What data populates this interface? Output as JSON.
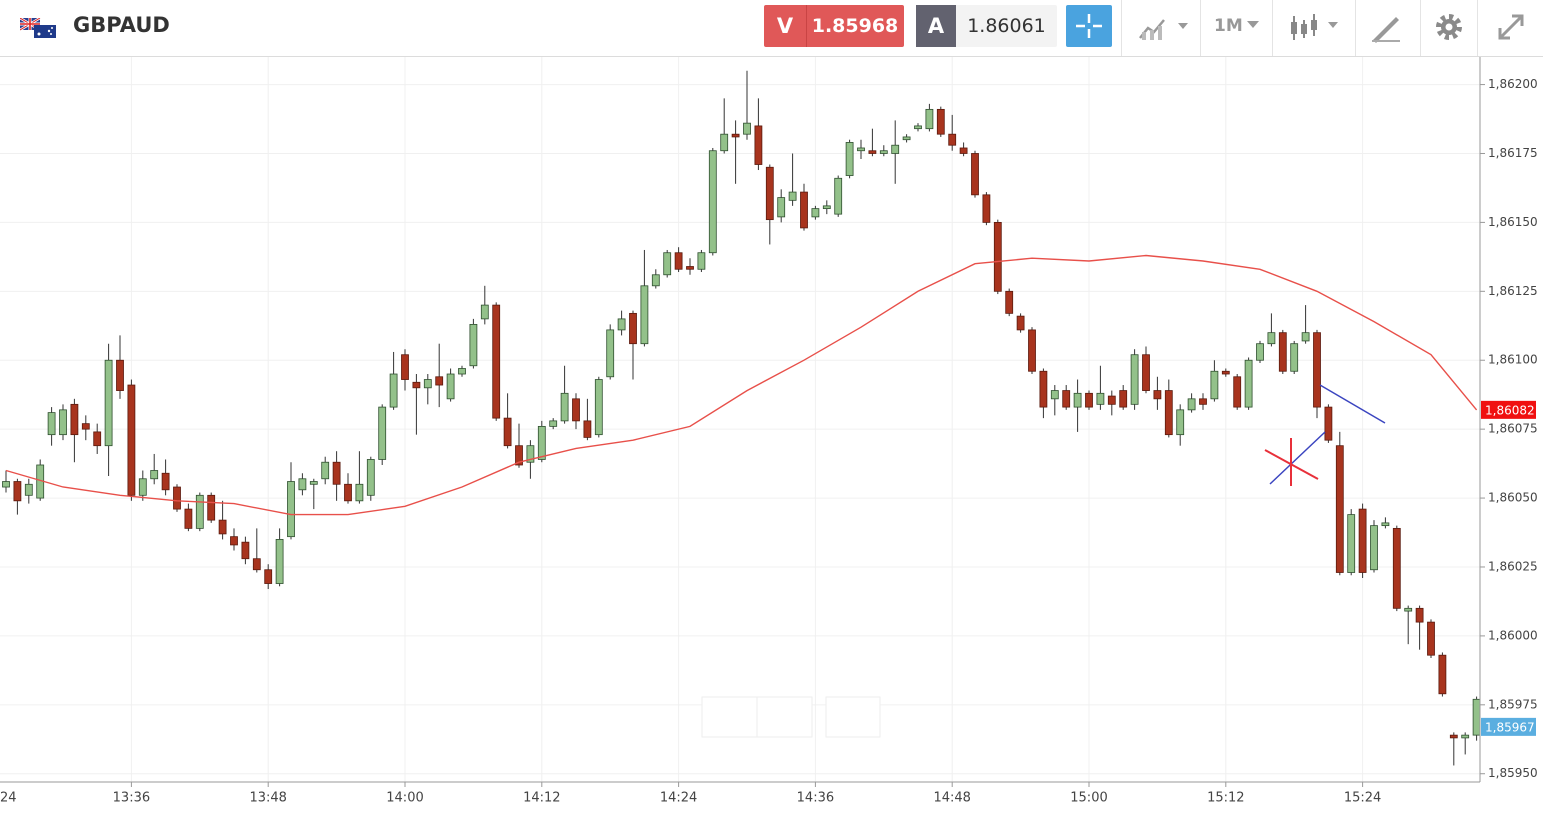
{
  "header": {
    "symbol": "GBPAUD",
    "sell": {
      "label": "V",
      "price": "1.85968"
    },
    "buy": {
      "label": "A",
      "price": "1.86061"
    },
    "timeframe": "1M"
  },
  "chart_data": {
    "type": "candlestick",
    "x": [
      "13:25",
      "13:26",
      "13:27",
      "13:28",
      "13:29",
      "13:30",
      "13:31",
      "13:32",
      "13:33",
      "13:34",
      "13:35",
      "13:36",
      "13:37",
      "13:38",
      "13:39",
      "13:40",
      "13:41",
      "13:42",
      "13:43",
      "13:44",
      "13:45",
      "13:46",
      "13:47",
      "13:48",
      "13:49",
      "13:50",
      "13:51",
      "13:52",
      "13:53",
      "13:54",
      "13:55",
      "13:56",
      "13:57",
      "13:58",
      "13:59",
      "14:00",
      "14:01",
      "14:02",
      "14:03",
      "14:04",
      "14:05",
      "14:06",
      "14:07",
      "14:08",
      "14:09",
      "14:10",
      "14:11",
      "14:12",
      "14:13",
      "14:14",
      "14:15",
      "14:16",
      "14:17",
      "14:18",
      "14:19",
      "14:20",
      "14:21",
      "14:22",
      "14:23",
      "14:24",
      "14:25",
      "14:26",
      "14:27",
      "14:28",
      "14:29",
      "14:30",
      "14:31",
      "14:32",
      "14:33",
      "14:34",
      "14:35",
      "14:36",
      "14:37",
      "14:38",
      "14:39",
      "14:40",
      "14:41",
      "14:42",
      "14:43",
      "14:44",
      "14:45",
      "14:46",
      "14:47",
      "14:48",
      "14:49",
      "14:50",
      "14:51",
      "14:52",
      "14:53",
      "14:54",
      "14:55",
      "14:56",
      "14:57",
      "14:58",
      "14:59",
      "15:00",
      "15:01",
      "15:02",
      "15:03",
      "15:04",
      "15:05",
      "15:06",
      "15:07",
      "15:08",
      "15:09",
      "15:10",
      "15:11",
      "15:12",
      "15:13",
      "15:14",
      "15:15",
      "15:16",
      "15:17",
      "15:18",
      "15:19",
      "15:20",
      "15:21",
      "15:22",
      "15:23",
      "15:24",
      "15:25",
      "15:26",
      "15:27",
      "15:28",
      "15:29",
      "15:30",
      "15:31",
      "15:32",
      "15:33",
      "15:34"
    ],
    "open": [
      1.86054,
      1.86056,
      1.86051,
      1.8605,
      1.86073,
      1.86073,
      1.86084,
      1.86077,
      1.86074,
      1.86069,
      1.861,
      1.86091,
      1.86051,
      1.86057,
      1.86059,
      1.86054,
      1.86046,
      1.86039,
      1.86051,
      1.86042,
      1.86036,
      1.86034,
      1.86028,
      1.86024,
      1.86019,
      1.86036,
      1.86053,
      1.86055,
      1.86057,
      1.86063,
      1.86055,
      1.86049,
      1.86051,
      1.86064,
      1.86083,
      1.86102,
      1.86092,
      1.8609,
      1.86094,
      1.86086,
      1.86095,
      1.86098,
      1.86115,
      1.8612,
      1.86079,
      1.86069,
      1.86063,
      1.86064,
      1.86076,
      1.86078,
      1.86086,
      1.86078,
      1.86073,
      1.86094,
      1.86111,
      1.86117,
      1.86106,
      1.86127,
      1.86131,
      1.86139,
      1.86134,
      1.86133,
      1.86139,
      1.86176,
      1.86182,
      1.86182,
      1.86185,
      1.8617,
      1.86152,
      1.86158,
      1.86161,
      1.86152,
      1.86155,
      1.86153,
      1.86167,
      1.86176,
      1.86176,
      1.86175,
      1.86175,
      1.8618,
      1.86184,
      1.86184,
      1.86191,
      1.86182,
      1.86177,
      1.86175,
      1.8616,
      1.8615,
      1.86125,
      1.86116,
      1.86111,
      1.86096,
      1.86086,
      1.86089,
      1.86083,
      1.86088,
      1.86084,
      1.86087,
      1.86089,
      1.86084,
      1.86102,
      1.86089,
      1.86089,
      1.86073,
      1.86082,
      1.86086,
      1.86086,
      1.86096,
      1.86094,
      1.86083,
      1.861,
      1.86106,
      1.8611,
      1.86096,
      1.86107,
      1.8611,
      1.86083,
      1.86069,
      1.86023,
      1.86046,
      1.86024,
      1.8604,
      1.86039,
      1.86009,
      1.8601,
      1.86005,
      1.85993,
      1.85964,
      1.85963,
      1.85964
    ],
    "high": [
      1.8606,
      1.86057,
      1.86057,
      1.86064,
      1.86083,
      1.86084,
      1.86086,
      1.8608,
      1.86077,
      1.86106,
      1.86109,
      1.86093,
      1.8606,
      1.86066,
      1.86064,
      1.86055,
      1.86048,
      1.86052,
      1.86052,
      1.86049,
      1.86039,
      1.86036,
      1.86039,
      1.86026,
      1.86039,
      1.86063,
      1.86059,
      1.86057,
      1.86065,
      1.86067,
      1.86059,
      1.86067,
      1.86065,
      1.86084,
      1.86103,
      1.86104,
      1.86095,
      1.86095,
      1.86106,
      1.86097,
      1.86098,
      1.86115,
      1.86127,
      1.86121,
      1.86088,
      1.86077,
      1.86071,
      1.86078,
      1.86079,
      1.86098,
      1.86088,
      1.86086,
      1.86094,
      1.86113,
      1.86118,
      1.86118,
      1.8614,
      1.86133,
      1.8614,
      1.86141,
      1.86137,
      1.8614,
      1.86177,
      1.86195,
      1.86187,
      1.86205,
      1.86195,
      1.86171,
      1.86162,
      1.86175,
      1.86164,
      1.86156,
      1.86158,
      1.86167,
      1.8618,
      1.8618,
      1.86184,
      1.86178,
      1.86187,
      1.86182,
      1.86186,
      1.86193,
      1.86192,
      1.86189,
      1.86179,
      1.86176,
      1.86161,
      1.86151,
      1.86126,
      1.86117,
      1.86112,
      1.86097,
      1.86091,
      1.86091,
      1.86093,
      1.86089,
      1.86098,
      1.86089,
      1.86091,
      1.86104,
      1.86105,
      1.86094,
      1.86093,
      1.86084,
      1.86088,
      1.86088,
      1.861,
      1.86097,
      1.86095,
      1.86101,
      1.86107,
      1.86117,
      1.86111,
      1.86107,
      1.8612,
      1.86111,
      1.86084,
      1.86074,
      1.86046,
      1.86048,
      1.86042,
      1.86043,
      1.8604,
      1.86011,
      1.86011,
      1.86006,
      1.85994,
      1.85965,
      1.85965,
      1.85978
    ],
    "low": [
      1.86052,
      1.86044,
      1.86048,
      1.86049,
      1.86069,
      1.86071,
      1.86063,
      1.86071,
      1.86066,
      1.86058,
      1.86086,
      1.86049,
      1.86049,
      1.86055,
      1.86051,
      1.86045,
      1.86038,
      1.86038,
      1.86041,
      1.86035,
      1.86031,
      1.86026,
      1.86023,
      1.86017,
      1.86018,
      1.86035,
      1.86051,
      1.86046,
      1.86055,
      1.86049,
      1.86048,
      1.86048,
      1.86049,
      1.86062,
      1.86082,
      1.86089,
      1.86073,
      1.86084,
      1.86083,
      1.86085,
      1.86094,
      1.86097,
      1.86113,
      1.86078,
      1.86068,
      1.86061,
      1.86057,
      1.86063,
      1.86075,
      1.86077,
      1.86075,
      1.86071,
      1.86072,
      1.86093,
      1.86109,
      1.86093,
      1.86105,
      1.86126,
      1.8613,
      1.86132,
      1.86131,
      1.86132,
      1.86138,
      1.86175,
      1.86164,
      1.8618,
      1.86169,
      1.86142,
      1.8615,
      1.86156,
      1.86147,
      1.86151,
      1.86153,
      1.86152,
      1.86166,
      1.86173,
      1.86174,
      1.86174,
      1.86164,
      1.86179,
      1.86183,
      1.86183,
      1.86181,
      1.86176,
      1.86174,
      1.86159,
      1.86149,
      1.86124,
      1.86116,
      1.8611,
      1.86095,
      1.86079,
      1.8608,
      1.86082,
      1.86074,
      1.86082,
      1.86082,
      1.8608,
      1.86082,
      1.86082,
      1.86088,
      1.86082,
      1.86072,
      1.86069,
      1.86081,
      1.86082,
      1.86085,
      1.86094,
      1.86082,
      1.86082,
      1.86099,
      1.86105,
      1.86095,
      1.86095,
      1.86106,
      1.86079,
      1.8607,
      1.86022,
      1.86022,
      1.86021,
      1.86023,
      1.86039,
      1.86009,
      1.85997,
      1.85995,
      1.85992,
      1.85978,
      1.85953,
      1.85957,
      1.85962
    ],
    "close": [
      1.86056,
      1.86049,
      1.86055,
      1.86062,
      1.86081,
      1.86082,
      1.86073,
      1.86075,
      1.86069,
      1.861,
      1.86089,
      1.86051,
      1.86057,
      1.8606,
      1.86053,
      1.86046,
      1.86039,
      1.86051,
      1.86042,
      1.86037,
      1.86033,
      1.86028,
      1.86024,
      1.86019,
      1.86035,
      1.86056,
      1.86057,
      1.86056,
      1.86063,
      1.86055,
      1.86049,
      1.86055,
      1.86064,
      1.86083,
      1.86095,
      1.86093,
      1.8609,
      1.86093,
      1.86091,
      1.86095,
      1.86097,
      1.86113,
      1.8612,
      1.86079,
      1.86069,
      1.86062,
      1.86069,
      1.86076,
      1.86078,
      1.86088,
      1.86078,
      1.86072,
      1.86093,
      1.86111,
      1.86115,
      1.86106,
      1.86127,
      1.86131,
      1.86139,
      1.86133,
      1.86133,
      1.86139,
      1.86176,
      1.86182,
      1.86181,
      1.86186,
      1.86171,
      1.86151,
      1.86159,
      1.86161,
      1.86148,
      1.86155,
      1.86156,
      1.86166,
      1.86179,
      1.86177,
      1.86175,
      1.86176,
      1.86178,
      1.86181,
      1.86185,
      1.86191,
      1.86182,
      1.86178,
      1.86175,
      1.8616,
      1.8615,
      1.86125,
      1.86117,
      1.86111,
      1.86096,
      1.86083,
      1.86089,
      1.86083,
      1.86088,
      1.86083,
      1.86088,
      1.86084,
      1.86083,
      1.86102,
      1.86089,
      1.86086,
      1.86073,
      1.86082,
      1.86086,
      1.86084,
      1.86096,
      1.86095,
      1.86083,
      1.861,
      1.86106,
      1.8611,
      1.86096,
      1.86106,
      1.8611,
      1.86083,
      1.86071,
      1.86023,
      1.86044,
      1.86023,
      1.8604,
      1.86041,
      1.8601,
      1.8601,
      1.86005,
      1.85993,
      1.85979,
      1.85963,
      1.85964,
      1.85977
    ],
    "up_color": "#93c18a",
    "down_color": "#a8341e",
    "wick_color": "#333333",
    "moving_average": {
      "color": "#e8504a",
      "x": [
        "13:25",
        "13:30",
        "13:35",
        "13:40",
        "13:45",
        "13:50",
        "13:55",
        "14:00",
        "14:05",
        "14:10",
        "14:15",
        "14:20",
        "14:25",
        "14:30",
        "14:35",
        "14:40",
        "14:45",
        "14:50",
        "14:55",
        "15:00",
        "15:05",
        "15:10",
        "15:15",
        "15:20",
        "15:25",
        "15:30",
        "15:34"
      ],
      "values": [
        1.8606,
        1.86054,
        1.86051,
        1.86049,
        1.86048,
        1.86044,
        1.86044,
        1.86047,
        1.86054,
        1.86063,
        1.86068,
        1.86071,
        1.86076,
        1.86089,
        1.861,
        1.86112,
        1.86125,
        1.86135,
        1.86137,
        1.86136,
        1.86138,
        1.86136,
        1.86133,
        1.86125,
        1.86114,
        1.86102,
        1.86082
      ]
    },
    "ylim": [
      1.85947,
      1.8621
    ],
    "yticks": [
      {
        "value": 1.862,
        "label": "1,86200"
      },
      {
        "value": 1.86175,
        "label": "1,86175"
      },
      {
        "value": 1.8615,
        "label": "1,86150"
      },
      {
        "value": 1.86125,
        "label": "1,86125"
      },
      {
        "value": 1.861,
        "label": "1,86100"
      },
      {
        "value": 1.86075,
        "label": "1,86075"
      },
      {
        "value": 1.8605,
        "label": "1,86050"
      },
      {
        "value": 1.86025,
        "label": "1,86025"
      },
      {
        "value": 1.86,
        "label": "1,86000"
      },
      {
        "value": 1.85975,
        "label": "1,85975"
      },
      {
        "value": 1.8595,
        "label": "1,85950"
      }
    ],
    "xticks": [
      {
        "value": "13:24",
        "label": "24"
      },
      "13:36",
      "13:48",
      "14:00",
      "14:12",
      "14:24",
      "14:36",
      "14:48",
      "15:00",
      "15:12",
      "15:24"
    ],
    "grid": true,
    "price_tags": [
      {
        "value": 1.86082,
        "label": "1,86082",
        "color": "#f01010"
      },
      {
        "value": 1.85967,
        "label": "1,85967",
        "color": "#5aaee0"
      }
    ]
  }
}
